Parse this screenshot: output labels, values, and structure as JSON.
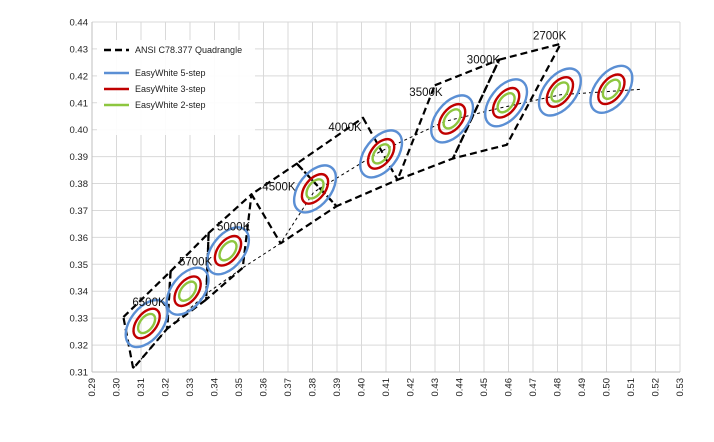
{
  "chart_data": {
    "type": "scatter",
    "title": "",
    "xlabel": "",
    "ylabel": "",
    "xlim": [
      0.29,
      0.53
    ],
    "ylim": [
      0.31,
      0.44
    ],
    "x_ticks": [
      "0.29",
      "0.30",
      "0.31",
      "0.32",
      "0.33",
      "0.34",
      "0.35",
      "0.36",
      "0.37",
      "0.38",
      "0.39",
      "0.40",
      "0.41",
      "0.42",
      "0.43",
      "0.44",
      "0.45",
      "0.46",
      "0.47",
      "0.48",
      "0.49",
      "0.50",
      "0.51",
      "0.52",
      "0.53"
    ],
    "y_ticks": [
      "0.31",
      "0.32",
      "0.33",
      "0.34",
      "0.35",
      "0.36",
      "0.37",
      "0.38",
      "0.39",
      "0.40",
      "0.41",
      "0.42",
      "0.43",
      "0.44"
    ],
    "grid": true,
    "legend_position": "top-left",
    "series": [
      {
        "name": "ANSI C78.377 Quadrangle",
        "color": "#000000",
        "style": "dashed"
      },
      {
        "name": "EasyWhite 5-step",
        "color": "#5b8fd4",
        "style": "solid"
      },
      {
        "name": "EasyWhite 3-step",
        "color": "#c00000",
        "style": "solid"
      },
      {
        "name": "EasyWhite 2-step",
        "color": "#8dc63f",
        "style": "solid"
      }
    ],
    "cct_labels": [
      {
        "text": "6500K",
        "x": 0.3065,
        "y": 0.3345
      },
      {
        "text": "5700K",
        "x": 0.3255,
        "y": 0.3495
      },
      {
        "text": "5000K",
        "x": 0.341,
        "y": 0.3625
      },
      {
        "text": "4500K",
        "x": 0.3595,
        "y": 0.3775
      },
      {
        "text": "4000K",
        "x": 0.3865,
        "y": 0.3995
      },
      {
        "text": "3500K",
        "x": 0.4195,
        "y": 0.4125
      },
      {
        "text": "3000K",
        "x": 0.443,
        "y": 0.4245
      },
      {
        "text": "2700K",
        "x": 0.47,
        "y": 0.4335
      }
    ],
    "ellipse_centers": [
      {
        "x": 0.3123,
        "y": 0.328
      },
      {
        "x": 0.329,
        "y": 0.34
      },
      {
        "x": 0.3455,
        "y": 0.355
      },
      {
        "x": 0.381,
        "y": 0.378
      },
      {
        "x": 0.408,
        "y": 0.391
      },
      {
        "x": 0.437,
        "y": 0.404
      },
      {
        "x": 0.459,
        "y": 0.41
      },
      {
        "x": 0.481,
        "y": 0.414
      },
      {
        "x": 0.502,
        "y": 0.415
      }
    ],
    "quadrangles": [
      [
        [
          0.3028,
          0.3304
        ],
        [
          0.3221,
          0.3474
        ],
        [
          0.3207,
          0.3261
        ],
        [
          0.3068,
          0.3113
        ]
      ],
      [
        [
          0.3221,
          0.3474
        ],
        [
          0.3376,
          0.3616
        ],
        [
          0.3366,
          0.3369
        ],
        [
          0.3207,
          0.3261
        ]
      ],
      [
        [
          0.3376,
          0.3616
        ],
        [
          0.3551,
          0.376
        ],
        [
          0.3515,
          0.3487
        ],
        [
          0.3366,
          0.3369
        ]
      ],
      [
        [
          0.3736,
          0.3874
        ],
        [
          0.3898,
          0.3716
        ],
        [
          0.367,
          0.3578
        ],
        [
          0.3551,
          0.376
        ]
      ],
      [
        [
          0.4006,
          0.4044
        ],
        [
          0.4147,
          0.3814
        ],
        [
          0.3898,
          0.3716
        ],
        [
          0.3736,
          0.3874
        ]
      ],
      [
        [
          0.4299,
          0.4165
        ],
        [
          0.4562,
          0.426
        ],
        [
          0.4373,
          0.3893
        ],
        [
          0.4147,
          0.3814
        ]
      ],
      [
        [
          0.4562,
          0.426
        ],
        [
          0.4813,
          0.4319
        ],
        [
          0.4593,
          0.3944
        ],
        [
          0.4373,
          0.3893
        ]
      ]
    ],
    "planckian_locus": [
      [
        0.3068,
        0.3113
      ],
      [
        0.3207,
        0.3261
      ],
      [
        0.3367,
        0.3391
      ],
      [
        0.3515,
        0.3487
      ],
      [
        0.367,
        0.3578
      ],
      [
        0.3805,
        0.3768
      ],
      [
        0.4073,
        0.3917
      ],
      [
        0.4338,
        0.403
      ],
      [
        0.4562,
        0.408
      ],
      [
        0.4813,
        0.413
      ],
      [
        0.514,
        0.415
      ]
    ]
  }
}
